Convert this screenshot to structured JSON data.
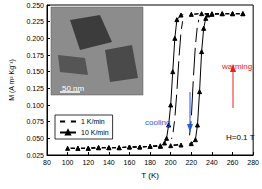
{
  "chart_data": {
    "type": "line",
    "x_label": "T (K)",
    "y_label": "M (A m² Kg⁻¹)",
    "xlim": [
      80,
      280
    ],
    "xticks": [
      80,
      100,
      120,
      140,
      160,
      180,
      200,
      220,
      240,
      260,
      280
    ],
    "ylim": [
      0.025,
      0.25
    ],
    "yticks": [
      0.025,
      {
        "value": 0.05,
        "label": "0.050"
      },
      0.075,
      {
        "value": 0.1,
        "label": "0.100"
      },
      0.125,
      {
        "value": 0.15,
        "label": "0.150"
      },
      0.175,
      {
        "value": 0.2,
        "label": "0.200"
      },
      0.225,
      {
        "value": 0.25,
        "label": "0.250"
      }
    ],
    "grid": false,
    "legend": "lower left",
    "series": [
      {
        "name": "1 K/min",
        "color": "#000000",
        "marker": "open circle",
        "x": [
          270,
          260,
          250,
          240,
          230,
          220,
          215,
          212,
          210,
          208,
          206,
          204,
          202,
          200,
          195,
          190,
          180,
          170,
          160,
          150,
          140,
          130,
          120,
          110,
          100,
          110,
          120,
          130,
          140,
          150,
          160,
          170,
          180,
          190,
          200,
          210,
          215,
          218,
          220,
          222,
          224,
          226,
          228,
          230,
          240,
          250,
          260,
          270
        ],
        "values": [
          0.237,
          0.237,
          0.237,
          0.237,
          0.237,
          0.236,
          0.235,
          0.23,
          0.21,
          0.17,
          0.12,
          0.08,
          0.055,
          0.045,
          0.04,
          0.039,
          0.038,
          0.037,
          0.037,
          0.036,
          0.036,
          0.036,
          0.035,
          0.035,
          0.035,
          0.035,
          0.035,
          0.036,
          0.036,
          0.036,
          0.037,
          0.037,
          0.038,
          0.039,
          0.04,
          0.041,
          0.042,
          0.05,
          0.08,
          0.14,
          0.19,
          0.22,
          0.232,
          0.235,
          0.236,
          0.237,
          0.237,
          0.237
        ]
      },
      {
        "name": "10 K/min",
        "color": "#000000",
        "marker": "triangle",
        "x": [
          270,
          260,
          250,
          240,
          230,
          220,
          210,
          206,
          204,
          202,
          200,
          198,
          196,
          194,
          190,
          180,
          170,
          160,
          150,
          140,
          130,
          120,
          110,
          100,
          110,
          120,
          130,
          140,
          150,
          160,
          170,
          180,
          190,
          200,
          210,
          220,
          224,
          226,
          228,
          230,
          232,
          234,
          236,
          240,
          250,
          260,
          270
        ],
        "values": [
          0.237,
          0.237,
          0.237,
          0.237,
          0.237,
          0.236,
          0.235,
          0.228,
          0.2,
          0.15,
          0.1,
          0.07,
          0.05,
          0.043,
          0.039,
          0.038,
          0.037,
          0.037,
          0.036,
          0.036,
          0.036,
          0.035,
          0.035,
          0.035,
          0.035,
          0.035,
          0.036,
          0.036,
          0.036,
          0.037,
          0.037,
          0.038,
          0.038,
          0.039,
          0.04,
          0.042,
          0.048,
          0.07,
          0.12,
          0.18,
          0.215,
          0.23,
          0.235,
          0.236,
          0.237,
          0.237,
          0.237
        ]
      }
    ],
    "annotations": [
      {
        "text": "warming",
        "color": "#e8211e"
      },
      {
        "text": "cooling",
        "color": "#2a5bd7"
      },
      {
        "text": "H=0.1 T",
        "color": "#000000"
      },
      {
        "text": "50 nm",
        "color": "#ffffff"
      }
    ]
  }
}
